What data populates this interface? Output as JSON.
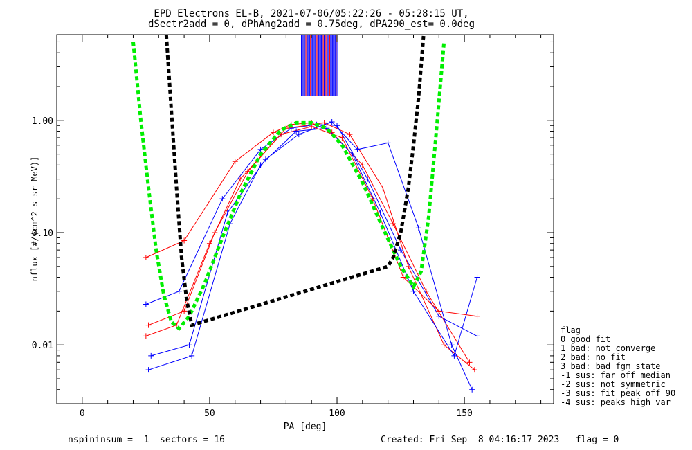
{
  "chart_data": {
    "type": "line",
    "title": "EPD Electrons EL-B, 2021-07-06/05:22:26 - 05:28:15 UT,",
    "subtitle": "dSectr2add = 0, dPhAng2add = 0.75deg, dPA290_est=   0.0deg",
    "xlabel": "PA [deg]",
    "ylabel": "nflux [#/(cm^2 s sr MeV)]",
    "xlim": [
      -10,
      185
    ],
    "ylim": [
      0.003,
      5.8
    ],
    "yscale": "log",
    "x_ticks": [
      0,
      50,
      100,
      150
    ],
    "x_tick_labels": [
      "0",
      "50",
      "100",
      "150"
    ],
    "y_ticks": [
      0.01,
      0.1,
      1.0
    ],
    "y_tick_labels": [
      "0.01",
      "0.10",
      "1.00"
    ],
    "colors": {
      "series_red": "#ff0000",
      "series_blue": "#0000ff",
      "fit_green": "#00ee00",
      "fit_black": "#000000"
    },
    "series": [
      {
        "color": "#ff0000",
        "style": "line+plus",
        "x": [
          25,
          40,
          60,
          75,
          82,
          90,
          98,
          110,
          122,
          135,
          152
        ],
        "y": [
          0.06,
          0.085,
          0.43,
          0.78,
          0.92,
          0.95,
          0.78,
          0.4,
          0.12,
          0.03,
          0.007
        ]
      },
      {
        "color": "#0000ff",
        "style": "line+plus",
        "x": [
          25,
          38,
          55,
          70,
          82,
          92,
          100,
          112,
          125,
          140,
          155
        ],
        "y": [
          0.023,
          0.03,
          0.2,
          0.55,
          0.85,
          0.92,
          0.9,
          0.3,
          0.07,
          0.018,
          0.012
        ]
      },
      {
        "color": "#ff0000",
        "style": "line+plus",
        "x": [
          26,
          40,
          52,
          65,
          80,
          95,
          105,
          118,
          128,
          142,
          154
        ],
        "y": [
          0.015,
          0.02,
          0.1,
          0.35,
          0.85,
          0.95,
          0.75,
          0.25,
          0.05,
          0.01,
          0.006
        ]
      },
      {
        "color": "#0000ff",
        "style": "line+plus",
        "x": [
          27,
          42,
          57,
          72,
          85,
          98,
          108,
          120,
          132,
          145,
          153
        ],
        "y": [
          0.008,
          0.01,
          0.15,
          0.45,
          0.75,
          0.97,
          0.55,
          0.63,
          0.11,
          0.01,
          0.004
        ]
      },
      {
        "color": "#ff0000",
        "style": "line+plus",
        "x": [
          25,
          37,
          50,
          62,
          78,
          90,
          102,
          114,
          126,
          140,
          155
        ],
        "y": [
          0.012,
          0.015,
          0.08,
          0.3,
          0.75,
          0.88,
          0.7,
          0.2,
          0.04,
          0.02,
          0.018
        ]
      },
      {
        "color": "#0000ff",
        "style": "line+plus",
        "x": [
          26,
          43,
          58,
          70,
          84,
          96,
          106,
          117,
          130,
          146,
          155
        ],
        "y": [
          0.006,
          0.008,
          0.12,
          0.4,
          0.8,
          0.85,
          0.5,
          0.15,
          0.03,
          0.008,
          0.04
        ]
      }
    ],
    "fits": [
      {
        "name": "green",
        "color": "#00ee00",
        "style": "dashed",
        "x": [
          20,
          23,
          26,
          29,
          32,
          35,
          38,
          42,
          48,
          55,
          62,
          70,
          78,
          84,
          90,
          96,
          102,
          110,
          118,
          125,
          130,
          133,
          136,
          139,
          142
        ],
        "y": [
          5.0,
          1.0,
          0.25,
          0.07,
          0.028,
          0.016,
          0.014,
          0.018,
          0.035,
          0.09,
          0.22,
          0.5,
          0.82,
          0.95,
          0.95,
          0.85,
          0.6,
          0.28,
          0.11,
          0.05,
          0.033,
          0.045,
          0.14,
          0.8,
          5.0
        ]
      },
      {
        "name": "black",
        "color": "#000000",
        "style": "dashed",
        "x": [
          33,
          35,
          37,
          39,
          41,
          43,
          120,
          122,
          125,
          128,
          130,
          132,
          134
        ],
        "y": [
          5.8,
          1.2,
          0.25,
          0.06,
          0.025,
          0.015,
          0.05,
          0.06,
          0.1,
          0.25,
          0.6,
          1.6,
          5.8
        ]
      }
    ],
    "spike_lines": {
      "x_range": [
        86,
        100
      ],
      "y_top": 5.8,
      "y_bottom": 1.65
    }
  },
  "legend": {
    "title": "flag",
    "items": [
      " 0 good fit",
      " 1 bad: not converge",
      " 2 bad: no fit",
      " 3 bad: bad fgm state",
      "-1 sus: far off median",
      "-2 sus: not symmetric",
      "-3 sus: fit peak off 90",
      "-4 sus: peaks high var"
    ]
  },
  "footer": {
    "left": "nspininsum =  1  sectors = 16",
    "right": "Created: Fri Sep  8 04:16:17 2023   flag = 0"
  }
}
